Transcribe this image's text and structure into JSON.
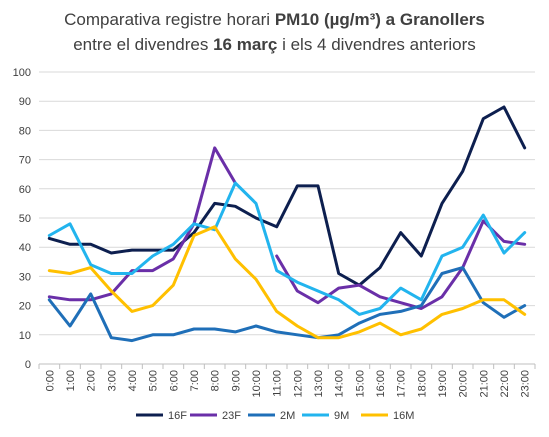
{
  "chart_data": {
    "type": "line",
    "title": {
      "line1_prefix": "Comparativa registre horari ",
      "line1_bold": "PM10 (µg/m³) a Granollers",
      "line2_prefix": "entre el divendres ",
      "line2_bold": "16 març",
      "line2_suffix": " i els 4 divendres anteriors"
    },
    "xlabel": "",
    "ylabel": "",
    "ylim": [
      0,
      100
    ],
    "yticks": [
      0,
      10,
      20,
      30,
      40,
      50,
      60,
      70,
      80,
      90,
      100
    ],
    "grid": true,
    "legend_position": "bottom",
    "categories": [
      "0:00",
      "1:00",
      "2:00",
      "3:00",
      "4:00",
      "5:00",
      "6:00",
      "7:00",
      "8:00",
      "9:00",
      "10:00",
      "11:00",
      "12:00",
      "13:00",
      "14:00",
      "15:00",
      "16:00",
      "17:00",
      "18:00",
      "19:00",
      "20:00",
      "21:00",
      "22:00",
      "23:00"
    ],
    "series": [
      {
        "name": "16F",
        "color": "#0d1f4f",
        "values": [
          43,
          41,
          41,
          38,
          39,
          39,
          39,
          45,
          55,
          54,
          50,
          47,
          61,
          61,
          31,
          27,
          33,
          45,
          37,
          55,
          66,
          84,
          88,
          74
        ]
      },
      {
        "name": "23F",
        "color": "#6a2fa8",
        "values": [
          23,
          22,
          22,
          24,
          32,
          32,
          36,
          48,
          74,
          62,
          null,
          37,
          25,
          21,
          26,
          27,
          23,
          21,
          19,
          23,
          33,
          49,
          42,
          41
        ]
      },
      {
        "name": "2M",
        "color": "#1f6fb8",
        "values": [
          22,
          13,
          24,
          9,
          8,
          10,
          10,
          12,
          12,
          11,
          13,
          11,
          10,
          9,
          10,
          14,
          17,
          18,
          20,
          31,
          33,
          21,
          16,
          20
        ]
      },
      {
        "name": "9M",
        "color": "#22b4ee",
        "values": [
          44,
          48,
          34,
          31,
          31,
          37,
          41,
          48,
          46,
          62,
          55,
          32,
          28,
          25,
          22,
          17,
          19,
          26,
          22,
          37,
          40,
          51,
          38,
          45
        ]
      },
      {
        "name": "16M",
        "color": "#ffc000",
        "values": [
          32,
          31,
          33,
          25,
          18,
          20,
          27,
          44,
          47,
          36,
          29,
          18,
          13,
          9,
          9,
          11,
          14,
          10,
          12,
          17,
          19,
          22,
          22,
          17
        ]
      }
    ]
  }
}
